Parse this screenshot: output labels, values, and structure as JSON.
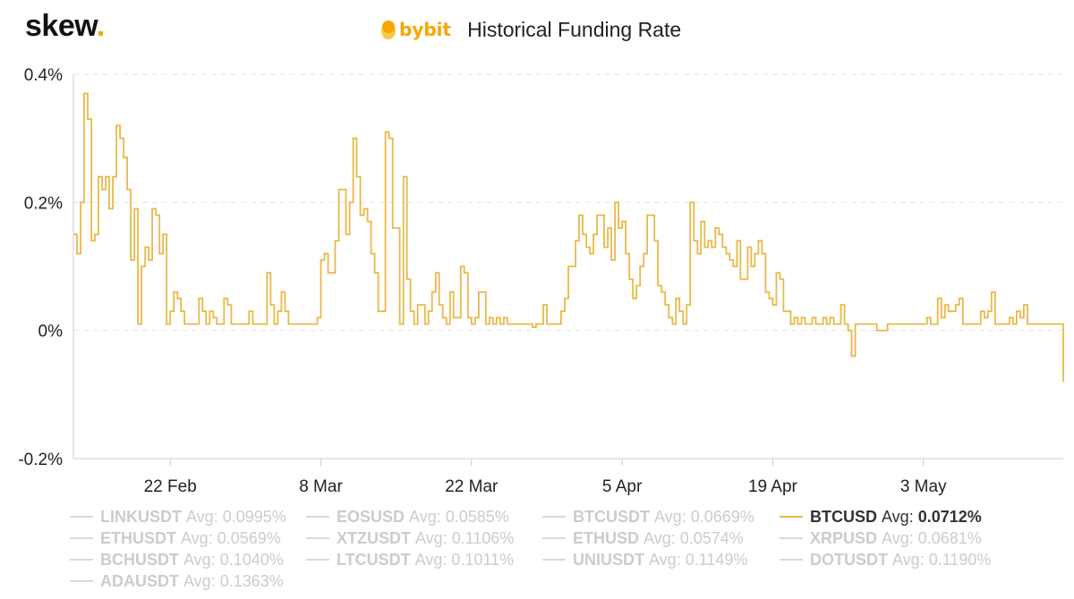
{
  "logo": {
    "text": "skew",
    "dot": "."
  },
  "header": {
    "brand": "bybit",
    "title": "Historical Funding Rate"
  },
  "colors": {
    "line": "#e9b94a",
    "brand": "#f7a600",
    "inactive": "#cccccc",
    "active": "#333333"
  },
  "chart_data": {
    "type": "line",
    "title": "Historical Funding Rate",
    "ylim": [
      -0.2,
      0.4
    ],
    "yticks": [
      {
        "value": 0.4,
        "label": "0.4%"
      },
      {
        "value": 0.2,
        "label": "0.2%"
      },
      {
        "value": 0,
        "label": "0%"
      },
      {
        "value": -0.2,
        "label": "-0.2%"
      }
    ],
    "xlim": [
      0,
      92
    ],
    "xticks": [
      {
        "value": 9,
        "label": "22 Feb"
      },
      {
        "value": 23,
        "label": "8 Mar"
      },
      {
        "value": 37,
        "label": "22 Mar"
      },
      {
        "value": 51,
        "label": "5 Apr"
      },
      {
        "value": 65,
        "label": "19 Apr"
      },
      {
        "value": 79,
        "label": "3 May"
      }
    ],
    "grid": true,
    "legend_position": "bottom",
    "series": [
      {
        "name": "BTCUSD",
        "step": "hv",
        "x": [
          0,
          0.33,
          0.67,
          1,
          1.33,
          1.67,
          2,
          2.33,
          2.67,
          3,
          3.33,
          3.67,
          4,
          4.33,
          4.67,
          5,
          5.33,
          5.67,
          6,
          6.33,
          6.67,
          7,
          7.33,
          7.67,
          8,
          8.33,
          8.67,
          9,
          9.33,
          9.67,
          10,
          10.33,
          10.67,
          11,
          11.33,
          11.67,
          12,
          12.33,
          12.67,
          13,
          13.33,
          13.67,
          14,
          14.33,
          14.67,
          15,
          15.33,
          15.67,
          16,
          16.33,
          16.67,
          17,
          17.33,
          17.67,
          18,
          18.33,
          18.67,
          19,
          19.33,
          19.67,
          20,
          20.33,
          20.67,
          21,
          21.33,
          21.67,
          22,
          22.33,
          22.67,
          23,
          23.33,
          23.67,
          24,
          24.33,
          24.67,
          25,
          25.33,
          25.67,
          26,
          26.33,
          26.67,
          27,
          27.33,
          27.67,
          28,
          28.33,
          28.67,
          29,
          29.33,
          29.67,
          30,
          30.33,
          30.67,
          31,
          31.33,
          31.67,
          32,
          32.33,
          32.67,
          33,
          33.33,
          33.67,
          34,
          34.33,
          34.67,
          35,
          35.33,
          35.67,
          36,
          36.33,
          36.67,
          37,
          37.33,
          37.67,
          38,
          38.33,
          38.67,
          39,
          39.33,
          39.67,
          40,
          40.33,
          40.67,
          41,
          41.33,
          41.67,
          42,
          42.33,
          42.67,
          43,
          43.33,
          43.67,
          44,
          44.33,
          44.67,
          45,
          45.33,
          45.67,
          46,
          46.33,
          46.67,
          47,
          47.33,
          47.67,
          48,
          48.33,
          48.67,
          49,
          49.33,
          49.67,
          50,
          50.33,
          50.67,
          51,
          51.33,
          51.67,
          52,
          52.33,
          52.67,
          53,
          53.33,
          53.67,
          54,
          54.33,
          54.67,
          55,
          55.33,
          55.67,
          56,
          56.33,
          56.67,
          57,
          57.33,
          57.67,
          58,
          58.33,
          58.67,
          59,
          59.33,
          59.67,
          60,
          60.33,
          60.67,
          61,
          61.33,
          61.67,
          62,
          62.33,
          62.67,
          63,
          63.33,
          63.67,
          64,
          64.33,
          64.67,
          65,
          65.33,
          65.67,
          66,
          66.33,
          66.67,
          67,
          67.33,
          67.67,
          68,
          68.33,
          68.67,
          69,
          69.33,
          69.67,
          70,
          70.33,
          70.67,
          71,
          71.33,
          71.67,
          72,
          72.33,
          72.67,
          73,
          73.33,
          73.67,
          74,
          74.33,
          74.67,
          75,
          75.33,
          75.67,
          76,
          76.33,
          76.67,
          77,
          77.33,
          77.67,
          78,
          78.33,
          78.67,
          79,
          79.33,
          79.67,
          80,
          80.33,
          80.67,
          81,
          81.33,
          81.67,
          82,
          82.33,
          82.67,
          83,
          83.33,
          83.67,
          84,
          84.33,
          84.67,
          85,
          85.33,
          85.67,
          86,
          86.33,
          86.67,
          87,
          87.33,
          87.67,
          88,
          88.33,
          88.67,
          89,
          89.33,
          89.67,
          90,
          90.33,
          90.67,
          91,
          91.33,
          91.67,
          92
        ],
        "values": [
          0.15,
          0.12,
          0.2,
          0.37,
          0.33,
          0.14,
          0.15,
          0.24,
          0.22,
          0.24,
          0.19,
          0.24,
          0.32,
          0.3,
          0.27,
          0.22,
          0.11,
          0.19,
          0.01,
          0.1,
          0.13,
          0.11,
          0.19,
          0.18,
          0.12,
          0.15,
          0.01,
          0.03,
          0.06,
          0.05,
          0.03,
          0.01,
          0.01,
          0.01,
          0.01,
          0.05,
          0.03,
          0.01,
          0.03,
          0.02,
          0.01,
          0.01,
          0.05,
          0.04,
          0.01,
          0.01,
          0.01,
          0.01,
          0.01,
          0.03,
          0.01,
          0.01,
          0.01,
          0.01,
          0.09,
          0.04,
          0.01,
          0.03,
          0.06,
          0.03,
          0.01,
          0.01,
          0.01,
          0.01,
          0.01,
          0.01,
          0.01,
          0.01,
          0.02,
          0.11,
          0.12,
          0.09,
          0.09,
          0.14,
          0.22,
          0.22,
          0.15,
          0.2,
          0.3,
          0.24,
          0.18,
          0.19,
          0.17,
          0.12,
          0.09,
          0.03,
          0.03,
          0.31,
          0.3,
          0.16,
          0.16,
          0.01,
          0.24,
          0.08,
          0.03,
          0.01,
          0.04,
          0.04,
          0.01,
          0.03,
          0.06,
          0.09,
          0.04,
          0.02,
          0.01,
          0.06,
          0.02,
          0.02,
          0.1,
          0.09,
          0.02,
          0.01,
          0.02,
          0.06,
          0.06,
          0.01,
          0.02,
          0.01,
          0.02,
          0.01,
          0.02,
          0.01,
          0.01,
          0.01,
          0.01,
          0.01,
          0.01,
          0.01,
          0.005,
          0.01,
          0.01,
          0.04,
          0.01,
          0.01,
          0.01,
          0.01,
          0.03,
          0.05,
          0.1,
          0.1,
          0.14,
          0.18,
          0.15,
          0.13,
          0.12,
          0.15,
          0.18,
          0.18,
          0.13,
          0.16,
          0.11,
          0.2,
          0.16,
          0.17,
          0.12,
          0.08,
          0.05,
          0.07,
          0.1,
          0.12,
          0.18,
          0.18,
          0.14,
          0.07,
          0.06,
          0.04,
          0.02,
          0.01,
          0.05,
          0.03,
          0.01,
          0.04,
          0.2,
          0.14,
          0.12,
          0.17,
          0.13,
          0.14,
          0.13,
          0.16,
          0.15,
          0.13,
          0.12,
          0.11,
          0.1,
          0.14,
          0.08,
          0.08,
          0.13,
          0.1,
          0.12,
          0.14,
          0.12,
          0.06,
          0.05,
          0.04,
          0.09,
          0.08,
          0.03,
          0.03,
          0.01,
          0.02,
          0.01,
          0.02,
          0.01,
          0.01,
          0.02,
          0.01,
          0.01,
          0.02,
          0.01,
          0.02,
          0.01,
          0.01,
          0.04,
          0.01,
          0.0,
          -0.04,
          0.01,
          0.01,
          0.01,
          0.01,
          0.01,
          0.01,
          0.0,
          0.0,
          0.0,
          0.01,
          0.01,
          0.01,
          0.01,
          0.01,
          0.01,
          0.01,
          0.01,
          0.01,
          0.01,
          0.01,
          0.02,
          0.01,
          0.01,
          0.05,
          0.02,
          0.04,
          0.03,
          0.03,
          0.04,
          0.05,
          0.01,
          0.01,
          0.01,
          0.01,
          0.01,
          0.03,
          0.02,
          0.03,
          0.06,
          0.01,
          0.01,
          0.01,
          0.01,
          0.02,
          0.01,
          0.03,
          0.02,
          0.04,
          0.01,
          0.01,
          0.01,
          0.01,
          0.01,
          0.01,
          0.01,
          0.01,
          0.01,
          0.01,
          -0.08
        ]
      }
    ]
  },
  "legend": {
    "avg_label": "Avg:",
    "items": [
      {
        "name": "LINKUSDT",
        "avg": "0.0995%",
        "active": false
      },
      {
        "name": "EOSUSD",
        "avg": "0.0585%",
        "active": false
      },
      {
        "name": "BTCUSDT",
        "avg": "0.0669%",
        "active": false
      },
      {
        "name": "BTCUSD",
        "avg": "0.0712%",
        "active": true
      },
      {
        "name": "ETHUSDT",
        "avg": "0.0569%",
        "active": false
      },
      {
        "name": "XTZUSDT",
        "avg": "0.1106%",
        "active": false
      },
      {
        "name": "ETHUSD",
        "avg": "0.0574%",
        "active": false
      },
      {
        "name": "XRPUSD",
        "avg": "0.0681%",
        "active": false
      },
      {
        "name": "BCHUSDT",
        "avg": "0.1040%",
        "active": false
      },
      {
        "name": "LTCUSDT",
        "avg": "0.1011%",
        "active": false
      },
      {
        "name": "UNIUSDT",
        "avg": "0.1149%",
        "active": false
      },
      {
        "name": "DOTUSDT",
        "avg": "0.1190%",
        "active": false
      },
      {
        "name": "ADAUSDT",
        "avg": "0.1363%",
        "active": false
      }
    ]
  }
}
